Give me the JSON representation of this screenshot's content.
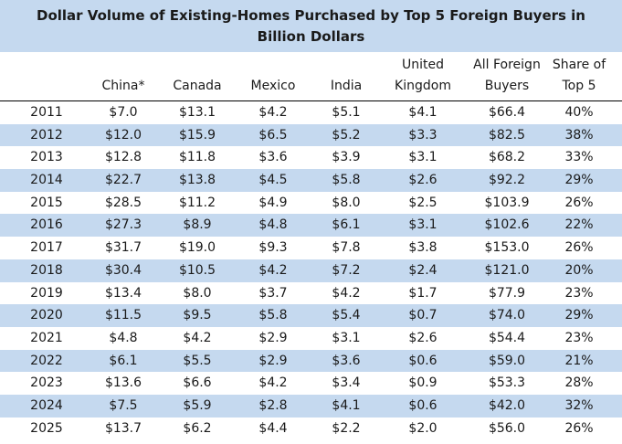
{
  "title_line1": "Dollar Volume of Existing-Homes Purchased by Top 5 Foreign Buyers in",
  "title_line2": "Billion Dollars",
  "chart_data": {
    "type": "table",
    "columns": [
      {
        "line1": "",
        "line2": ""
      },
      {
        "line1": "",
        "line2": "China*"
      },
      {
        "line1": "",
        "line2": "Canada"
      },
      {
        "line1": "",
        "line2": "Mexico"
      },
      {
        "line1": "",
        "line2": "India"
      },
      {
        "line1": "United",
        "line2": "Kingdom"
      },
      {
        "line1": "All Foreign",
        "line2": "Buyers"
      },
      {
        "line1": "Share of",
        "line2": "Top 5"
      }
    ],
    "rows": [
      [
        "2011",
        "$7.0",
        "$13.1",
        "$4.2",
        "$5.1",
        "$4.1",
        "$66.4",
        "40%"
      ],
      [
        "2012",
        "$12.0",
        "$15.9",
        "$6.5",
        "$5.2",
        "$3.3",
        "$82.5",
        "38%"
      ],
      [
        "2013",
        "$12.8",
        "$11.8",
        "$3.6",
        "$3.9",
        "$3.1",
        "$68.2",
        "33%"
      ],
      [
        "2014",
        "$22.7",
        "$13.8",
        "$4.5",
        "$5.8",
        "$2.6",
        "$92.2",
        "29%"
      ],
      [
        "2015",
        "$28.5",
        "$11.2",
        "$4.9",
        "$8.0",
        "$2.5",
        "$103.9",
        "26%"
      ],
      [
        "2016",
        "$27.3",
        "$8.9",
        "$4.8",
        "$6.1",
        "$3.1",
        "$102.6",
        "22%"
      ],
      [
        "2017",
        "$31.7",
        "$19.0",
        "$9.3",
        "$7.8",
        "$3.8",
        "$153.0",
        "26%"
      ],
      [
        "2018",
        "$30.4",
        "$10.5",
        "$4.2",
        "$7.2",
        "$2.4",
        "$121.0",
        "20%"
      ],
      [
        "2019",
        "$13.4",
        "$8.0",
        "$3.7",
        "$4.2",
        "$1.7",
        "$77.9",
        "23%"
      ],
      [
        "2020",
        "$11.5",
        "$9.5",
        "$5.8",
        "$5.4",
        "$0.7",
        "$74.0",
        "29%"
      ],
      [
        "2021",
        "$4.8",
        "$4.2",
        "$2.9",
        "$3.1",
        "$2.6",
        "$54.4",
        "23%"
      ],
      [
        "2022",
        "$6.1",
        "$5.5",
        "$2.9",
        "$3.6",
        "$0.6",
        "$59.0",
        "21%"
      ],
      [
        "2023",
        "$13.6",
        "$6.6",
        "$4.2",
        "$3.4",
        "$0.9",
        "$53.3",
        "28%"
      ],
      [
        "2024",
        "$7.5",
        "$5.9",
        "$2.8",
        "$4.1",
        "$0.6",
        "$42.0",
        "32%"
      ],
      [
        "2025",
        "$13.7",
        "$6.2",
        "$4.4",
        "$2.2",
        "$2.0",
        "$56.0",
        "26%"
      ]
    ]
  },
  "colors": {
    "header_band": "#c5d9ef",
    "row_shade": "#c5d9ef"
  }
}
